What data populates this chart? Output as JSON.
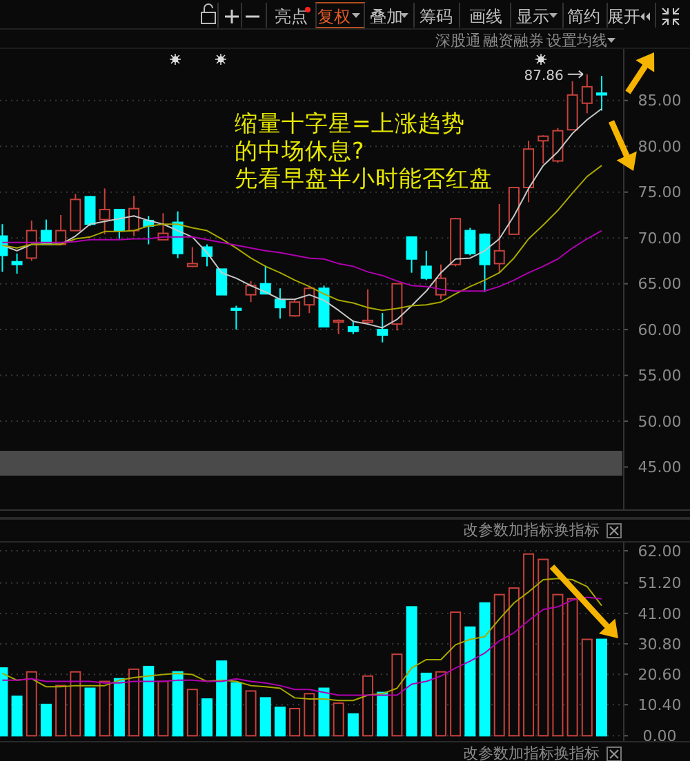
{
  "chart_data": [
    {
      "type": "candlestick",
      "categories": [
        null,
        null,
        null,
        null,
        null,
        null,
        null,
        null,
        null,
        null,
        null,
        null,
        null,
        null,
        null,
        null,
        null,
        null,
        null,
        null,
        null,
        null,
        null,
        null,
        null,
        null,
        null,
        null,
        null,
        null,
        null,
        null,
        null,
        null,
        null,
        null,
        null,
        null,
        null,
        null,
        null,
        null
      ],
      "ohlc": [
        [
          70.2,
          71.5,
          66.3,
          68.1
        ],
        [
          67.4,
          68.3,
          66.1,
          67.1
        ],
        [
          67.8,
          71.9,
          67.5,
          70.8
        ],
        [
          70.8,
          72.0,
          69.3,
          69.3
        ],
        [
          69.3,
          72.5,
          69.2,
          70.8
        ],
        [
          70.8,
          74.8,
          70.8,
          74.2
        ],
        [
          74.5,
          74.6,
          71.3,
          71.5
        ],
        [
          72.0,
          75.4,
          70.4,
          73.1
        ],
        [
          73.1,
          73.1,
          69.9,
          70.8
        ],
        [
          70.8,
          74.6,
          70.2,
          73.2
        ],
        [
          71.9,
          72.4,
          69.3,
          71.3
        ],
        [
          69.8,
          72.7,
          69.8,
          70.5
        ],
        [
          71.7,
          72.9,
          67.8,
          68.3
        ],
        [
          66.9,
          69.0,
          66.8,
          67.2
        ],
        [
          69.0,
          69.3,
          66.9,
          68.0
        ],
        [
          66.6,
          66.6,
          63.8,
          63.8
        ],
        [
          62.3,
          62.6,
          60.0,
          62.2
        ],
        [
          63.8,
          65.3,
          63.0,
          64.8
        ],
        [
          65.0,
          67.0,
          63.9,
          63.9
        ],
        [
          63.3,
          64.5,
          61.2,
          62.4
        ],
        [
          61.5,
          63.3,
          61.4,
          63.0
        ],
        [
          62.7,
          64.7,
          61.8,
          64.5
        ],
        [
          64.5,
          64.8,
          60.3,
          60.3
        ],
        [
          60.9,
          61.1,
          59.5,
          61.0
        ],
        [
          60.3,
          61.0,
          59.5,
          59.8
        ],
        [
          60.8,
          64.4,
          60.6,
          61.0
        ],
        [
          60.0,
          61.8,
          58.6,
          59.4
        ],
        [
          60.6,
          65.0,
          59.9,
          65.0
        ],
        [
          70.1,
          70.1,
          66.2,
          67.7
        ],
        [
          66.9,
          68.6,
          65.4,
          65.6
        ],
        [
          63.8,
          67.1,
          63.3,
          65.6
        ],
        [
          67.1,
          72.2,
          66.9,
          72.1
        ],
        [
          70.8,
          71.1,
          68.1,
          68.3
        ],
        [
          70.4,
          70.5,
          64.1,
          67.1
        ],
        [
          67.2,
          73.7,
          66.3,
          68.6
        ],
        [
          70.4,
          75.5,
          70.4,
          75.5
        ],
        [
          75.5,
          80.6,
          73.9,
          79.7
        ],
        [
          80.6,
          81.2,
          78.1,
          81.1
        ],
        [
          78.4,
          82.0,
          78.2,
          81.7
        ],
        [
          81.8,
          87.1,
          81.8,
          85.6
        ],
        [
          84.7,
          87.86,
          83.6,
          86.5
        ],
        [
          85.8,
          87.7,
          83.9,
          85.7
        ]
      ],
      "colors": [
        "#00ffff",
        "#00ffff",
        "#c8413c",
        "#00ffff",
        "#c8413c",
        "#c8413c",
        "#00ffff",
        "#c8413c",
        "#00ffff",
        "#c8413c",
        "#00ffff",
        "#c8413c",
        "#00ffff",
        "#c8413c",
        "#00ffff",
        "#00ffff",
        "#00ffff",
        "#c8413c",
        "#00ffff",
        "#00ffff",
        "#c8413c",
        "#c8413c",
        "#00ffff",
        "#c8413c",
        "#00ffff",
        "#c8413c",
        "#00ffff",
        "#c8413c",
        "#00ffff",
        "#00ffff",
        "#c8413c",
        "#c8413c",
        "#00ffff",
        "#00ffff",
        "#c8413c",
        "#c8413c",
        "#c8413c",
        "#c8413c",
        "#c8413c",
        "#c8413c",
        "#c8413c",
        "#00ffff"
      ],
      "series": [
        {
          "type": "line",
          "color": "#c8c8c8",
          "values": [
            69.2,
            68.6,
            69.3,
            69.3,
            69.3,
            70.2,
            71.5,
            71.8,
            72.1,
            72.4,
            71.9,
            71.5,
            70.8,
            70.1,
            68.4,
            66.2,
            65.6,
            64.8,
            64.1,
            63.3,
            63.3,
            63.8,
            63.2,
            62.1,
            60.9,
            60.6,
            60.2,
            61.1,
            62.6,
            64.2,
            66.2,
            67.7,
            67.8,
            68.6,
            69.9,
            72.4,
            75.4,
            77.9,
            79.4,
            81.4,
            82.9,
            84.1
          ]
        },
        {
          "type": "line",
          "color": "#a8a800",
          "values": [
            69.2,
            68.9,
            69.3,
            69.3,
            69.3,
            69.9,
            70.1,
            70.7,
            70.7,
            70.8,
            71.3,
            71.5,
            71.5,
            71.1,
            70.8,
            69.9,
            68.9,
            67.8,
            66.9,
            66.2,
            65.4,
            64.7,
            63.9,
            63.2,
            62.9,
            62.4,
            62.1,
            62.3,
            62.6,
            62.7,
            63.0,
            63.9,
            64.7,
            65.4,
            66.2,
            67.8,
            69.9,
            71.4,
            73.0,
            74.9,
            76.7,
            77.9
          ]
        },
        {
          "type": "line",
          "color": "#b000b0",
          "values": [
            69.5,
            69.5,
            69.5,
            69.5,
            69.5,
            69.6,
            69.8,
            69.8,
            69.8,
            69.9,
            69.9,
            70.1,
            70.1,
            70.1,
            69.8,
            69.5,
            69.2,
            68.9,
            68.6,
            68.4,
            68.1,
            67.8,
            67.7,
            67.2,
            66.9,
            66.3,
            65.9,
            65.3,
            64.8,
            64.7,
            64.4,
            64.2,
            64.2,
            64.2,
            64.7,
            65.4,
            66.2,
            66.9,
            67.7,
            68.9,
            69.9,
            70.8
          ]
        }
      ],
      "ylim": [
        40.3,
        90.7
      ],
      "yticks": [
        {
          "value": 45,
          "label": "45.00"
        },
        {
          "value": 50,
          "label": "50.00"
        },
        {
          "value": 55,
          "label": "55.00"
        },
        {
          "value": 60,
          "label": "60.00"
        },
        {
          "value": 65,
          "label": "65.00"
        },
        {
          "value": 70,
          "label": "70.00"
        },
        {
          "value": 75,
          "label": "75.00"
        },
        {
          "value": 80,
          "label": "80.00"
        },
        {
          "value": 85,
          "label": "85.00"
        }
      ],
      "grid": "y",
      "annotations": [
        "缩量十字星=上涨趋势",
        "的中场休息?",
        "先看早盘半小时能否红盘",
        "87.86",
        "亮点",
        "复权",
        "叠加",
        "筹码",
        "画线",
        "显示",
        "简约",
        "展开",
        "深股通",
        "融资融券",
        "设置均线"
      ]
    },
    {
      "type": "bar",
      "categories": [
        null,
        null,
        null,
        null,
        null,
        null,
        null,
        null,
        null,
        null,
        null,
        null,
        null,
        null,
        null,
        null,
        null,
        null,
        null,
        null,
        null,
        null,
        null,
        null,
        null,
        null,
        null,
        null,
        null,
        null,
        null,
        null,
        null,
        null,
        null,
        null,
        null,
        null,
        null,
        null,
        null,
        null
      ],
      "series": [
        {
          "type": "bar",
          "values": [
            22.7,
            13.2,
            21.4,
            10.5,
            16.8,
            21.4,
            15.9,
            18.2,
            19.1,
            22.3,
            23.2,
            18.2,
            21.4,
            15.5,
            12.3,
            25.0,
            17.7,
            15.0,
            12.7,
            9.5,
            9.1,
            14.1,
            15.9,
            10.9,
            7.3,
            20.0,
            14.5,
            27.3,
            43.2,
            20.9,
            21.4,
            41.4,
            36.4,
            44.5,
            47.3,
            49.5,
            60.9,
            59.1,
            47.3,
            45.9,
            32.3,
            32.3
          ],
          "colors": [
            "#00ffff",
            "#00ffff",
            "#c8413c",
            "#00ffff",
            "#c8413c",
            "#c8413c",
            "#00ffff",
            "#c8413c",
            "#00ffff",
            "#c8413c",
            "#00ffff",
            "#c8413c",
            "#00ffff",
            "#c8413c",
            "#00ffff",
            "#00ffff",
            "#00ffff",
            "#c8413c",
            "#00ffff",
            "#00ffff",
            "#c8413c",
            "#c8413c",
            "#00ffff",
            "#c8413c",
            "#00ffff",
            "#c8413c",
            "#00ffff",
            "#c8413c",
            "#00ffff",
            "#00ffff",
            "#c8413c",
            "#c8413c",
            "#00ffff",
            "#00ffff",
            "#c8413c",
            "#c8413c",
            "#c8413c",
            "#c8413c",
            "#c8413c",
            "#c8413c",
            "#c8413c",
            "#00ffff"
          ]
        },
        {
          "type": "line",
          "color": "#a8a800",
          "values": [
            20.9,
            18.6,
            19.1,
            16.4,
            16.4,
            16.8,
            16.8,
            16.8,
            18.6,
            19.5,
            20.0,
            20.5,
            20.9,
            20.5,
            18.2,
            18.6,
            18.2,
            16.8,
            16.4,
            15.9,
            12.7,
            12.3,
            12.3,
            11.8,
            11.8,
            13.6,
            14.1,
            15.9,
            22.7,
            25.5,
            25.5,
            30.5,
            32.3,
            33.2,
            39.1,
            44.5,
            48.2,
            52.3,
            52.7,
            52.3,
            50.0,
            43.6
          ]
        },
        {
          "type": "line",
          "color": "#b000b0",
          "values": [
            18.6,
            18.6,
            19.1,
            18.2,
            18.2,
            18.2,
            18.2,
            17.7,
            17.7,
            18.2,
            18.2,
            18.2,
            18.6,
            18.6,
            18.2,
            18.2,
            19.1,
            18.2,
            17.7,
            16.8,
            15.5,
            15.5,
            14.5,
            13.6,
            13.6,
            13.6,
            13.6,
            13.6,
            17.3,
            18.2,
            20.0,
            22.7,
            25.0,
            27.7,
            31.8,
            34.5,
            38.6,
            42.3,
            43.2,
            45.5,
            46.4,
            45.9
          ]
        }
      ],
      "ylim": [
        -2,
        65
      ],
      "yticks": [
        {
          "value": 0,
          "label": "0.00"
        },
        {
          "value": 10.4,
          "label": "10.40"
        },
        {
          "value": 20.6,
          "label": "20.60"
        },
        {
          "value": 30.8,
          "label": "30.80"
        },
        {
          "value": 41,
          "label": "41.00"
        },
        {
          "value": 51.2,
          "label": "51.20"
        },
        {
          "value": 62,
          "label": "62.00"
        }
      ],
      "grid": "y",
      "annotations": [
        "改参数",
        "加指标",
        "换指标",
        "改参数",
        "加指标",
        "换指标"
      ]
    }
  ]
}
